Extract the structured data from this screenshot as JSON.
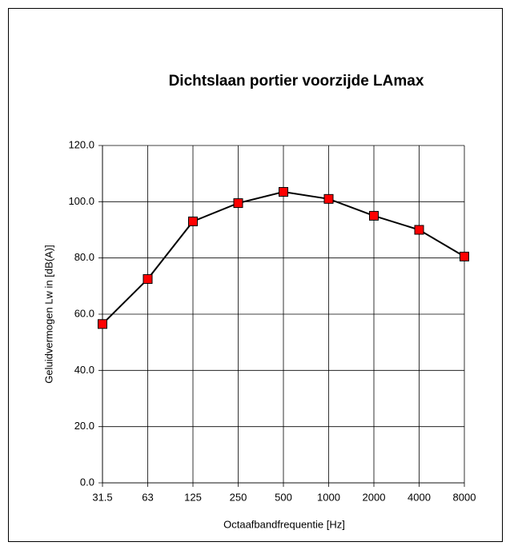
{
  "chart_data": {
    "type": "line",
    "title": "Dichtslaan portier voorzijde LAmax",
    "xlabel": "Octaafbandfrequentie [Hz]",
    "ylabel": "Geluidvermogen Lw in  [dB(A)]",
    "categories": [
      "31.5",
      "63",
      "125",
      "250",
      "500",
      "1000",
      "2000",
      "4000",
      "8000"
    ],
    "values": [
      56.5,
      72.5,
      93,
      99.5,
      103.5,
      101,
      95,
      90,
      80.5
    ],
    "color": "#000000",
    "marker_color": "#ff0000",
    "ylim": [
      0,
      120
    ],
    "yticks": [
      {
        "value": 0,
        "label": "0.0"
      },
      {
        "value": 20,
        "label": "20.0"
      },
      {
        "value": 40,
        "label": "40.0"
      },
      {
        "value": 60,
        "label": "60.0"
      },
      {
        "value": 80,
        "label": "80.0"
      },
      {
        "value": 100,
        "label": "100.0"
      },
      {
        "value": 120,
        "label": "120.0"
      }
    ],
    "grid": true
  }
}
